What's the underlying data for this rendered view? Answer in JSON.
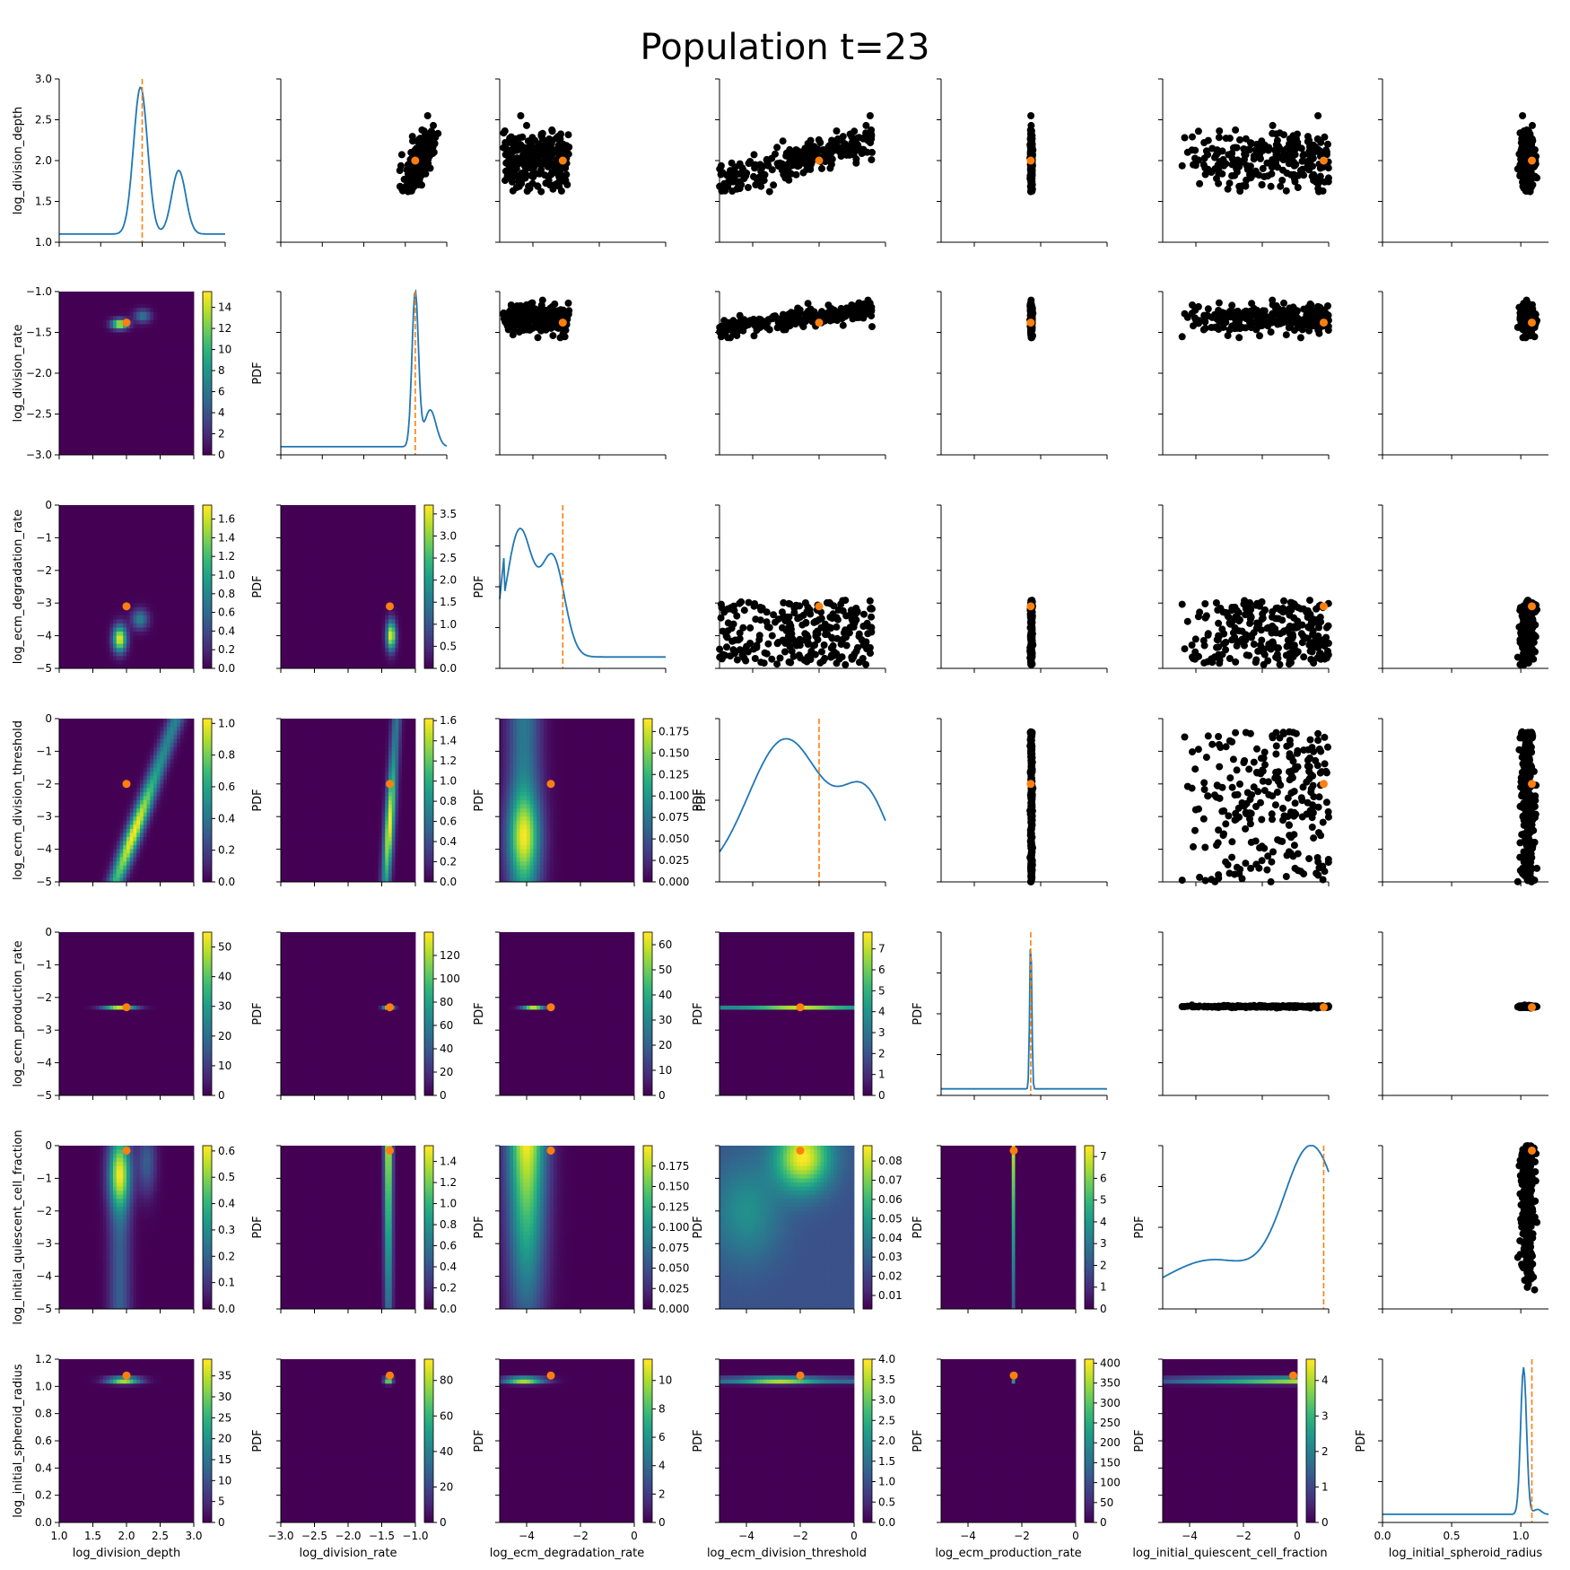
{
  "title": "Population t=23",
  "colors": {
    "kde_line": "#1f77b4",
    "reference": "#ff7f0e",
    "scatter": "#000000",
    "colormap": "viridis"
  },
  "parameters": [
    {
      "name": "log_division_depth",
      "range": [
        1.0,
        3.0
      ],
      "ref": 2.0,
      "ticks": [
        1.0,
        1.5,
        2.0,
        2.5,
        3.0
      ],
      "ticklabels": [
        "1.0",
        "1.5",
        "2.0",
        "2.5",
        "3.0"
      ]
    },
    {
      "name": "log_division_rate",
      "range": [
        -3.0,
        -1.0
      ],
      "ref": -1.38,
      "ticks": [
        -3.0,
        -2.5,
        -2.0,
        -1.5,
        -1.0
      ],
      "ticklabels": [
        "−3.0",
        "−2.5",
        "−2.0",
        "−1.5",
        "−1.0"
      ]
    },
    {
      "name": "log_ecm_degradation_rate",
      "range": [
        -5,
        0
      ],
      "ref": -3.1,
      "ticks": [
        -4,
        -2,
        0
      ],
      "ticklabels": [
        "−4",
        "−2",
        "0"
      ],
      "yticks": [
        -5,
        -4,
        -3,
        -2,
        -1,
        0
      ],
      "yticklabels": [
        "−5",
        "−4",
        "−3",
        "−2",
        "−1",
        "0"
      ]
    },
    {
      "name": "log_ecm_division_threshold",
      "range": [
        -5,
        0
      ],
      "ref": -2.0,
      "ticks": [
        -4,
        -2,
        0
      ],
      "ticklabels": [
        "−4",
        "−2",
        "0"
      ],
      "yticks": [
        -5,
        -4,
        -3,
        -2,
        -1,
        0
      ],
      "yticklabels": [
        "−5",
        "−4",
        "−3",
        "−2",
        "−1",
        "0"
      ]
    },
    {
      "name": "log_ecm_production_rate",
      "range": [
        -5,
        0
      ],
      "ref": -2.3,
      "ticks": [
        -4,
        -2,
        0
      ],
      "ticklabels": [
        "−4",
        "−2",
        "0"
      ],
      "yticks": [
        -5,
        -4,
        -3,
        -2,
        -1,
        0
      ],
      "yticklabels": [
        "−5",
        "−4",
        "−3",
        "−2",
        "−1",
        "0"
      ]
    },
    {
      "name": "log_initial_quiescent_cell_fraction",
      "range": [
        -5,
        0
      ],
      "ref": -0.15,
      "ticks": [
        -4,
        -2,
        0
      ],
      "ticklabels": [
        "−4",
        "−2",
        "0"
      ],
      "yticks": [
        -5,
        -4,
        -3,
        -2,
        -1,
        0
      ],
      "yticklabels": [
        "−5",
        "−4",
        "−3",
        "−2",
        "−1",
        "0"
      ]
    },
    {
      "name": "log_initial_spheroid_radius",
      "range": [
        0.0,
        1.2
      ],
      "ref": 1.08,
      "ticks": [
        0.0,
        0.5,
        1.0
      ],
      "ticklabels": [
        "0.0",
        "0.5",
        "1.0"
      ],
      "yticks": [
        0.0,
        0.2,
        0.4,
        0.6,
        0.8,
        1.0,
        1.2
      ],
      "yticklabels": [
        "0.0",
        "0.2",
        "0.4",
        "0.6",
        "0.8",
        "1.0",
        "1.2"
      ]
    }
  ],
  "diag_ylim": [
    1.0,
    3.0
  ],
  "diag_yticks": [
    1.0,
    1.5,
    2.0,
    2.5,
    3.0
  ],
  "diag_yticklabels": [
    "1.0",
    "1.5",
    "2.0",
    "2.5",
    "3.0"
  ],
  "row3_diag_ylabel": "PDF",
  "colorbar_label": "PDF",
  "colorbars": {
    "1-0": {
      "max": 15.5,
      "ticks": [
        0,
        2,
        4,
        6,
        8,
        10,
        12,
        14
      ],
      "labels": [
        "0",
        "2",
        "4",
        "6",
        "8",
        "10",
        "12",
        "14"
      ]
    },
    "2-0": {
      "max": 1.75,
      "ticks": [
        0,
        0.2,
        0.4,
        0.6,
        0.8,
        1.0,
        1.2,
        1.4,
        1.6
      ],
      "labels": [
        "0.0",
        "0.2",
        "0.4",
        "0.6",
        "0.8",
        "1.0",
        "1.2",
        "1.4",
        "1.6"
      ]
    },
    "2-1": {
      "max": 3.7,
      "ticks": [
        0,
        0.5,
        1.0,
        1.5,
        2.0,
        2.5,
        3.0,
        3.5
      ],
      "labels": [
        "0.0",
        "0.5",
        "1.0",
        "1.5",
        "2.0",
        "2.5",
        "3.0",
        "3.5"
      ]
    },
    "3-0": {
      "max": 1.03,
      "ticks": [
        0,
        0.2,
        0.4,
        0.6,
        0.8,
        1.0
      ],
      "labels": [
        "0.0",
        "0.2",
        "0.4",
        "0.6",
        "0.8",
        "1.0"
      ]
    },
    "3-1": {
      "max": 1.62,
      "ticks": [
        0,
        0.2,
        0.4,
        0.6,
        0.8,
        1.0,
        1.2,
        1.4,
        1.6
      ],
      "labels": [
        "0.0",
        "0.2",
        "0.4",
        "0.6",
        "0.8",
        "1.0",
        "1.2",
        "1.4",
        "1.6"
      ]
    },
    "3-2": {
      "max": 0.19,
      "ticks": [
        0,
        0.025,
        0.05,
        0.075,
        0.1,
        0.125,
        0.15,
        0.175
      ],
      "labels": [
        "0.000",
        "0.025",
        "0.050",
        "0.075",
        "0.100",
        "0.125",
        "0.150",
        "0.175"
      ]
    },
    "4-0": {
      "max": 55,
      "ticks": [
        0,
        10,
        20,
        30,
        40,
        50
      ],
      "labels": [
        "0",
        "10",
        "20",
        "30",
        "40",
        "50"
      ]
    },
    "4-1": {
      "max": 140,
      "ticks": [
        0,
        20,
        40,
        60,
        80,
        100,
        120
      ],
      "labels": [
        "0",
        "20",
        "40",
        "60",
        "80",
        "100",
        "120"
      ]
    },
    "4-2": {
      "max": 65,
      "ticks": [
        0,
        10,
        20,
        30,
        40,
        50,
        60
      ],
      "labels": [
        "0",
        "10",
        "20",
        "30",
        "40",
        "50",
        "60"
      ]
    },
    "4-3": {
      "max": 7.8,
      "ticks": [
        0,
        1,
        2,
        3,
        4,
        5,
        6,
        7
      ],
      "labels": [
        "0",
        "1",
        "2",
        "3",
        "4",
        "5",
        "6",
        "7"
      ]
    },
    "5-0": {
      "max": 0.62,
      "ticks": [
        0,
        0.1,
        0.2,
        0.3,
        0.4,
        0.5,
        0.6
      ],
      "labels": [
        "0.0",
        "0.1",
        "0.2",
        "0.3",
        "0.4",
        "0.5",
        "0.6"
      ]
    },
    "5-1": {
      "max": 1.55,
      "ticks": [
        0,
        0.2,
        0.4,
        0.6,
        0.8,
        1.0,
        1.2,
        1.4
      ],
      "labels": [
        "0.0",
        "0.2",
        "0.4",
        "0.6",
        "0.8",
        "1.0",
        "1.2",
        "1.4"
      ]
    },
    "5-2": {
      "max": 0.2,
      "ticks": [
        0,
        0.025,
        0.05,
        0.075,
        0.1,
        0.125,
        0.15,
        0.175
      ],
      "labels": [
        "0.000",
        "0.025",
        "0.050",
        "0.075",
        "0.100",
        "0.125",
        "0.150",
        "0.175"
      ]
    },
    "5-3": {
      "max": 0.088,
      "min": 0.003,
      "ticks": [
        0.01,
        0.02,
        0.03,
        0.04,
        0.05,
        0.06,
        0.07,
        0.08
      ],
      "labels": [
        "0.01",
        "0.02",
        "0.03",
        "0.04",
        "0.05",
        "0.06",
        "0.07",
        "0.08"
      ]
    },
    "5-4": {
      "max": 7.5,
      "ticks": [
        0,
        1,
        2,
        3,
        4,
        5,
        6,
        7
      ],
      "labels": [
        "0",
        "1",
        "2",
        "3",
        "4",
        "5",
        "6",
        "7"
      ]
    },
    "6-0": {
      "max": 39,
      "ticks": [
        0,
        5,
        10,
        15,
        20,
        25,
        30,
        35
      ],
      "labels": [
        "0",
        "5",
        "10",
        "15",
        "20",
        "25",
        "30",
        "35"
      ]
    },
    "6-1": {
      "max": 92,
      "ticks": [
        0,
        20,
        40,
        60,
        80
      ],
      "labels": [
        "0",
        "20",
        "40",
        "60",
        "80"
      ]
    },
    "6-2": {
      "max": 11.5,
      "ticks": [
        0,
        2,
        4,
        6,
        8,
        10
      ],
      "labels": [
        "0",
        "2",
        "4",
        "6",
        "8",
        "10"
      ]
    },
    "6-3": {
      "max": 4.0,
      "ticks": [
        0,
        0.5,
        1.0,
        1.5,
        2.0,
        2.5,
        3.0,
        3.5,
        4.0
      ],
      "labels": [
        "0.0",
        "0.5",
        "1.0",
        "1.5",
        "2.0",
        "2.5",
        "3.0",
        "3.5",
        "4.0"
      ]
    },
    "6-4": {
      "max": 410,
      "ticks": [
        0,
        50,
        100,
        150,
        200,
        250,
        300,
        350,
        400
      ],
      "labels": [
        "0",
        "50",
        "100",
        "150",
        "200",
        "250",
        "300",
        "350",
        "400"
      ]
    },
    "6-5": {
      "max": 4.6,
      "ticks": [
        0,
        1,
        2,
        3,
        4
      ],
      "labels": [
        "0",
        "1",
        "2",
        "3",
        "4"
      ]
    }
  },
  "chart_data": {
    "type": "pair-grid",
    "diagonal": "kde line with dashed reference at true value",
    "upper": "scatter of accepted particles with reference point",
    "lower": "2d kde heatmap (viridis) with colorbar and reference point"
  }
}
